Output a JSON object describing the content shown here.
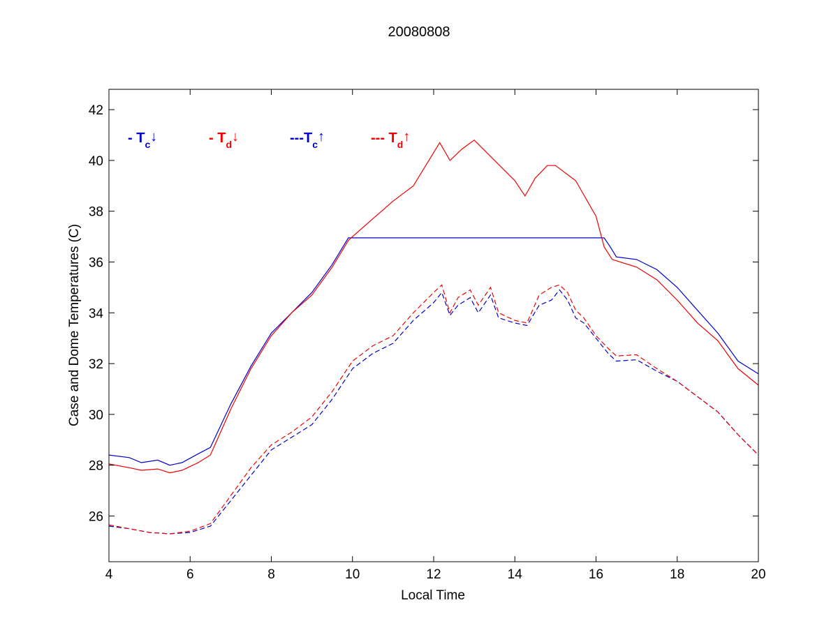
{
  "chart_data": {
    "type": "line",
    "title": "20080808",
    "xlabel": "Local Time",
    "ylabel": "Case and Dome Temperatures (C)",
    "xlim": [
      4,
      20
    ],
    "ylim": [
      24.2,
      42.8
    ],
    "xticks": [
      4,
      6,
      8,
      10,
      12,
      14,
      16,
      18,
      20
    ],
    "yticks": [
      26,
      28,
      30,
      32,
      34,
      36,
      38,
      40,
      42
    ],
    "grid": false,
    "legend_position": "top-left (inside axes)",
    "series": [
      {
        "name_main": "- T",
        "name_sub": "c",
        "name_arrow": "↓",
        "color": "#0000cc",
        "dash": "solid",
        "points": [
          [
            4,
            28.4
          ],
          [
            4.5,
            28.3
          ],
          [
            4.8,
            28.1
          ],
          [
            5.2,
            28.2
          ],
          [
            5.5,
            28.0
          ],
          [
            5.8,
            28.1
          ],
          [
            6.2,
            28.45
          ],
          [
            6.5,
            28.7
          ],
          [
            7,
            30.4
          ],
          [
            7.5,
            31.9
          ],
          [
            8,
            33.2
          ],
          [
            8.5,
            34.0
          ],
          [
            9,
            34.8
          ],
          [
            9.5,
            35.9
          ],
          [
            9.9,
            36.95
          ],
          [
            16.2,
            36.95
          ],
          [
            16.35,
            36.6
          ],
          [
            16.5,
            36.2
          ],
          [
            17,
            36.1
          ],
          [
            17.5,
            35.7
          ],
          [
            18,
            35.0
          ],
          [
            18.5,
            34.1
          ],
          [
            19,
            33.2
          ],
          [
            19.5,
            32.1
          ],
          [
            20,
            31.6
          ]
        ]
      },
      {
        "name_main": "- T",
        "name_sub": "d",
        "name_arrow": "↓",
        "color": "#ee0000",
        "dash": "solid",
        "points": [
          [
            4,
            28.05
          ],
          [
            4.5,
            27.9
          ],
          [
            4.8,
            27.8
          ],
          [
            5.2,
            27.85
          ],
          [
            5.5,
            27.7
          ],
          [
            5.8,
            27.8
          ],
          [
            6.2,
            28.1
          ],
          [
            6.5,
            28.4
          ],
          [
            7,
            30.2
          ],
          [
            7.5,
            31.8
          ],
          [
            8,
            33.1
          ],
          [
            8.5,
            34.0
          ],
          [
            9,
            34.7
          ],
          [
            9.5,
            35.8
          ],
          [
            9.9,
            36.85
          ],
          [
            10,
            37.0
          ],
          [
            10.5,
            37.7
          ],
          [
            11,
            38.4
          ],
          [
            11.5,
            39.0
          ],
          [
            12.15,
            40.7
          ],
          [
            12.4,
            40.0
          ],
          [
            12.7,
            40.45
          ],
          [
            13,
            40.8
          ],
          [
            13.5,
            40.0
          ],
          [
            14,
            39.2
          ],
          [
            14.25,
            38.6
          ],
          [
            14.5,
            39.3
          ],
          [
            14.8,
            39.8
          ],
          [
            15,
            39.8
          ],
          [
            15.5,
            39.2
          ],
          [
            16,
            37.8
          ],
          [
            16.2,
            36.6
          ],
          [
            16.4,
            36.1
          ],
          [
            17,
            35.8
          ],
          [
            17.5,
            35.3
          ],
          [
            18,
            34.5
          ],
          [
            18.5,
            33.6
          ],
          [
            19,
            32.9
          ],
          [
            19.5,
            31.8
          ],
          [
            20,
            31.15
          ]
        ]
      },
      {
        "name_main": "---T",
        "name_sub": "c",
        "name_arrow": "↑",
        "color": "#0000cc",
        "dash": "dashed",
        "points": [
          [
            4,
            25.6
          ],
          [
            4.5,
            25.5
          ],
          [
            5,
            25.35
          ],
          [
            5.5,
            25.3
          ],
          [
            6,
            25.35
          ],
          [
            6.5,
            25.6
          ],
          [
            7,
            26.6
          ],
          [
            7.5,
            27.6
          ],
          [
            8,
            28.6
          ],
          [
            8.5,
            29.1
          ],
          [
            9,
            29.6
          ],
          [
            9.5,
            30.6
          ],
          [
            10,
            31.8
          ],
          [
            10.5,
            32.4
          ],
          [
            11,
            32.8
          ],
          [
            11.5,
            33.7
          ],
          [
            12,
            34.4
          ],
          [
            12.2,
            34.8
          ],
          [
            12.4,
            33.9
          ],
          [
            12.6,
            34.3
          ],
          [
            12.9,
            34.6
          ],
          [
            13.1,
            34.0
          ],
          [
            13.4,
            34.7
          ],
          [
            13.6,
            33.8
          ],
          [
            14,
            33.6
          ],
          [
            14.3,
            33.5
          ],
          [
            14.6,
            34.3
          ],
          [
            14.9,
            34.5
          ],
          [
            15.1,
            34.9
          ],
          [
            15.3,
            34.5
          ],
          [
            15.5,
            33.8
          ],
          [
            15.7,
            33.6
          ],
          [
            16,
            33.0
          ],
          [
            16.3,
            32.4
          ],
          [
            16.5,
            32.1
          ],
          [
            17,
            32.15
          ],
          [
            17.5,
            31.7
          ],
          [
            18,
            31.3
          ],
          [
            18.5,
            30.7
          ],
          [
            19,
            30.1
          ],
          [
            19.5,
            29.2
          ],
          [
            20,
            28.4
          ]
        ]
      },
      {
        "name_main": "--- T",
        "name_sub": "d",
        "name_arrow": "↑",
        "color": "#ee0000",
        "dash": "dashed",
        "points": [
          [
            4,
            25.65
          ],
          [
            4.5,
            25.5
          ],
          [
            5,
            25.35
          ],
          [
            5.5,
            25.3
          ],
          [
            6,
            25.4
          ],
          [
            6.5,
            25.7
          ],
          [
            7,
            26.8
          ],
          [
            7.5,
            27.9
          ],
          [
            8,
            28.8
          ],
          [
            8.5,
            29.3
          ],
          [
            9,
            29.9
          ],
          [
            9.5,
            30.9
          ],
          [
            10,
            32.1
          ],
          [
            10.5,
            32.7
          ],
          [
            11,
            33.1
          ],
          [
            11.5,
            34.0
          ],
          [
            12,
            34.8
          ],
          [
            12.2,
            35.1
          ],
          [
            12.4,
            34.0
          ],
          [
            12.6,
            34.6
          ],
          [
            12.9,
            34.9
          ],
          [
            13.1,
            34.3
          ],
          [
            13.4,
            35.0
          ],
          [
            13.6,
            34.0
          ],
          [
            14,
            33.7
          ],
          [
            14.3,
            33.6
          ],
          [
            14.6,
            34.7
          ],
          [
            14.9,
            35.0
          ],
          [
            15.1,
            35.1
          ],
          [
            15.3,
            34.8
          ],
          [
            15.5,
            34.1
          ],
          [
            15.7,
            33.8
          ],
          [
            16,
            33.1
          ],
          [
            16.3,
            32.6
          ],
          [
            16.5,
            32.3
          ],
          [
            17,
            32.35
          ],
          [
            17.5,
            31.8
          ],
          [
            18,
            31.3
          ],
          [
            18.5,
            30.7
          ],
          [
            19,
            30.1
          ],
          [
            19.5,
            29.2
          ],
          [
            20,
            28.4
          ]
        ]
      }
    ]
  }
}
